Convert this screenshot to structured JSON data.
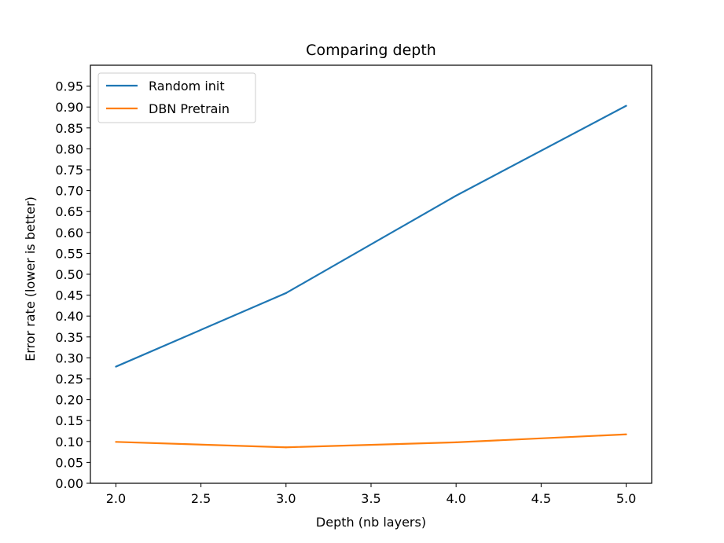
{
  "chart_data": {
    "type": "line",
    "title": "Comparing depth",
    "xlabel": "Depth (nb layers)",
    "ylabel": "Error rate (lower is better)",
    "x": [
      2.0,
      3.0,
      4.0,
      5.0
    ],
    "xlim": [
      1.85,
      5.15
    ],
    "ylim": [
      0.0,
      1.0
    ],
    "xticks": [
      "2.0",
      "2.5",
      "3.0",
      "3.5",
      "4.0",
      "4.5",
      "5.0"
    ],
    "yticks": [
      "0.00",
      "0.05",
      "0.10",
      "0.15",
      "0.20",
      "0.25",
      "0.30",
      "0.35",
      "0.40",
      "0.45",
      "0.50",
      "0.55",
      "0.60",
      "0.65",
      "0.70",
      "0.75",
      "0.80",
      "0.85",
      "0.90",
      "0.95"
    ],
    "grid": false,
    "legend_position": "top-left",
    "series": [
      {
        "name": "Random init",
        "values": [
          0.279,
          0.455,
          0.688,
          0.903
        ],
        "color": "#1f77b4"
      },
      {
        "name": "DBN Pretrain",
        "values": [
          0.099,
          0.086,
          0.098,
          0.117
        ],
        "color": "#ff7f0e"
      }
    ]
  }
}
